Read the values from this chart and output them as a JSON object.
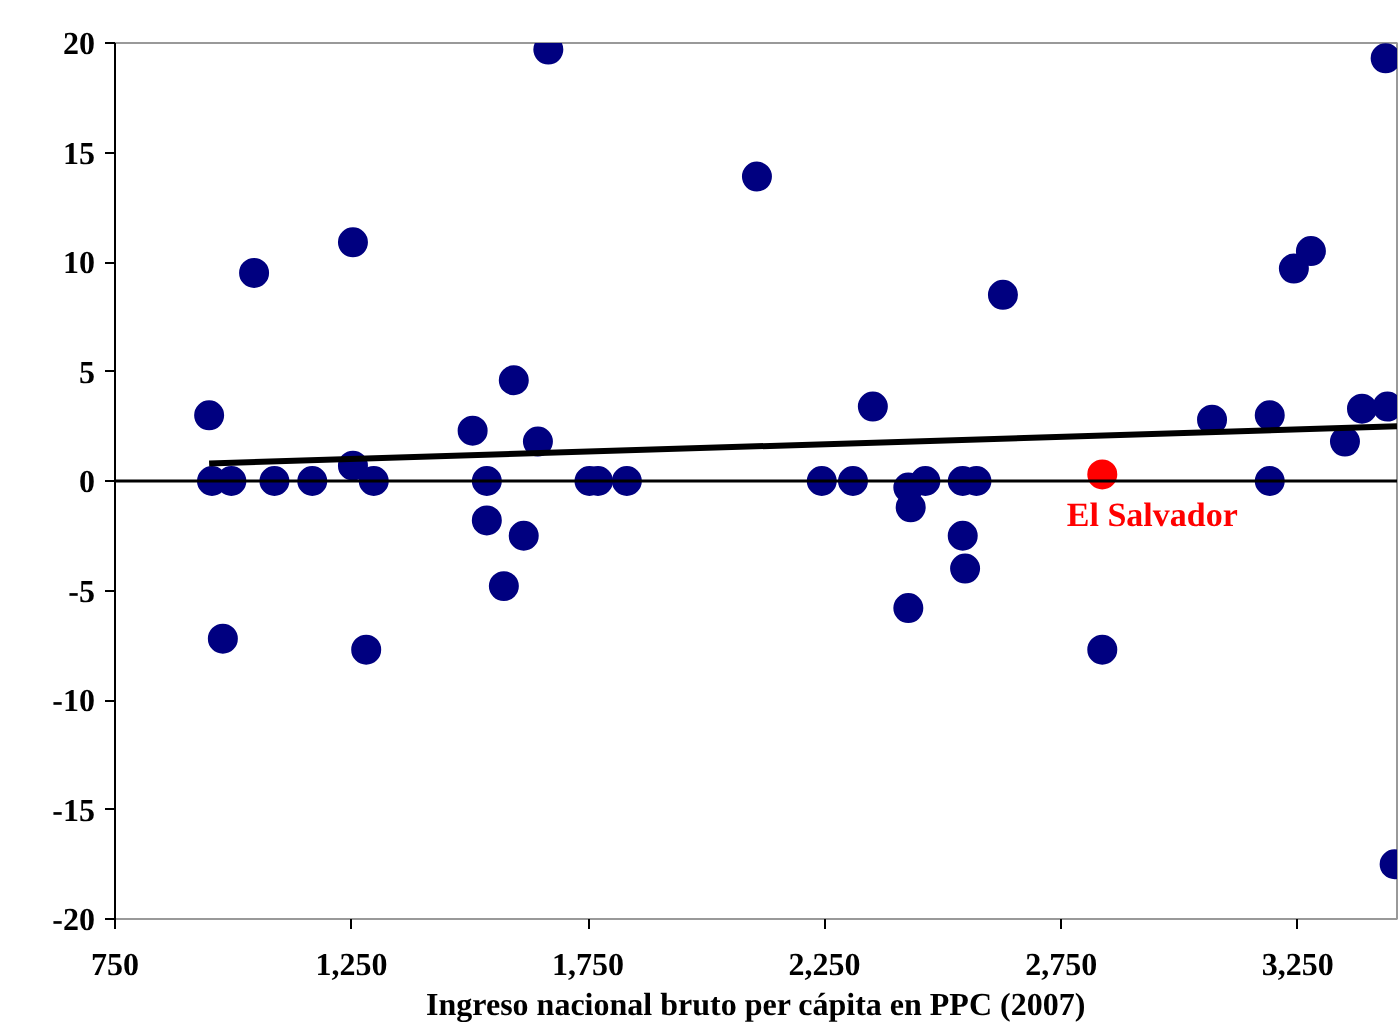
{
  "chart_data": {
    "type": "scatter",
    "xlabel": "Ingreso nacional bruto per cápita en PPC (2007)",
    "xlim": [
      750,
      3460
    ],
    "xticks": [
      {
        "value": 750,
        "label": "750"
      },
      {
        "value": 1250,
        "label": "1,250"
      },
      {
        "value": 1750,
        "label": "1,750"
      },
      {
        "value": 2250,
        "label": "2,250"
      },
      {
        "value": 2750,
        "label": "2,750"
      },
      {
        "value": 3250,
        "label": "3,250"
      }
    ],
    "ylim": [
      -20,
      20
    ],
    "yticks": [
      -20,
      -15,
      -10,
      -5,
      0,
      5,
      10,
      15,
      20
    ],
    "grid": false,
    "ref_lines": [
      {
        "axis": "y",
        "value": 0,
        "color": "#000000"
      }
    ],
    "series": [
      {
        "marker": "circle",
        "color": "#000080",
        "x": [
          949,
          955,
          996,
          1044,
          978,
          1087,
          1167,
          1253,
          1253,
          1297,
          1281,
          1506,
          1536,
          1536,
          1593,
          1572,
          1614,
          1644,
          1666,
          1753,
          1771,
          1832,
          2107,
          2244,
          2310,
          2352,
          2427,
          2432,
          2463,
          2427,
          2542,
          2571,
          2542,
          2547,
          2627,
          2837,
          3069,
          3191,
          3191,
          3242,
          3278,
          3350,
          3386,
          3440,
          3436,
          3455
        ],
        "values": [
          3,
          0,
          0,
          9.5,
          -7.2,
          0,
          0,
          10.9,
          0.7,
          0,
          -7.7,
          2.3,
          0,
          -1.8,
          4.6,
          -4.8,
          -2.5,
          1.8,
          19.7,
          0,
          0,
          0,
          13.9,
          0,
          0,
          3.4,
          -0.3,
          -1.2,
          0,
          -5.8,
          0,
          0,
          -2.5,
          -4,
          8.5,
          -7.7,
          2.8,
          3,
          0,
          9.7,
          10.5,
          1.8,
          3.3,
          3.4,
          19.3,
          -17.5
        ]
      },
      {
        "type": "scatter",
        "marker": "circle",
        "name": "El Salvador",
        "color": "#ff0000",
        "x": [
          2837
        ],
        "values": [
          0.3
        ]
      },
      {
        "type": "line",
        "color": "#000000",
        "x": [
          949,
          3460
        ],
        "values": [
          0.8,
          2.5
        ]
      }
    ]
  }
}
